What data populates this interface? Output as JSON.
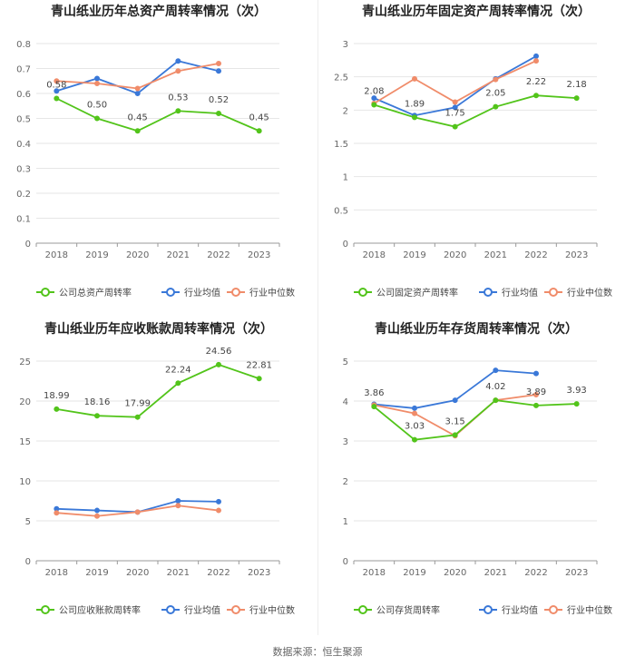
{
  "source": "数据来源：恒生聚源",
  "legend_labels": [
    "行业均值",
    "行业中位数"
  ],
  "chart_data": [
    {
      "type": "line",
      "title": "青山纸业历年总资产周转率情况（次）",
      "categories": [
        "2018",
        "2019",
        "2020",
        "2021",
        "2022",
        "2023"
      ],
      "ylim": [
        0,
        0.8
      ],
      "yticks": [
        "0",
        "0.1",
        "0.2",
        "0.3",
        "0.4",
        "0.5",
        "0.6",
        "0.7",
        "0.8"
      ],
      "series": [
        {
          "name": "公司总资产周转率",
          "color": "#52c41a",
          "values": [
            0.58,
            0.5,
            0.45,
            0.53,
            0.52,
            0.45
          ],
          "labels": [
            "0.58",
            "0.50",
            "0.45",
            "0.53",
            "0.52",
            "0.45"
          ]
        },
        {
          "name": "行业均值",
          "color": "#3a78d8",
          "values": [
            0.61,
            0.66,
            0.6,
            0.73,
            0.69,
            null
          ]
        },
        {
          "name": "行业中位数",
          "color": "#f08c6a",
          "values": [
            0.65,
            0.64,
            0.62,
            0.69,
            0.72,
            null
          ]
        }
      ]
    },
    {
      "type": "line",
      "title": "青山纸业历年固定资产周转率情况（次）",
      "categories": [
        "2018",
        "2019",
        "2020",
        "2021",
        "2022",
        "2023"
      ],
      "ylim": [
        0,
        3
      ],
      "yticks": [
        "0",
        "0.5",
        "1",
        "1.5",
        "2",
        "2.5",
        "3"
      ],
      "series": [
        {
          "name": "公司固定资产周转率",
          "color": "#52c41a",
          "values": [
            2.08,
            1.89,
            1.75,
            2.05,
            2.22,
            2.18
          ],
          "labels": [
            "2.08",
            "1.89",
            "1.75",
            "2.05",
            "2.22",
            "2.18"
          ]
        },
        {
          "name": "行业均值",
          "color": "#3a78d8",
          "values": [
            2.18,
            1.92,
            2.04,
            2.47,
            2.81,
            null
          ]
        },
        {
          "name": "行业中位数",
          "color": "#f08c6a",
          "values": [
            2.1,
            2.47,
            2.12,
            2.46,
            2.74,
            null
          ]
        }
      ]
    },
    {
      "type": "line",
      "title": "青山纸业历年应收账款周转率情况（次）",
      "categories": [
        "2018",
        "2019",
        "2020",
        "2021",
        "2022",
        "2023"
      ],
      "ylim": [
        0,
        25
      ],
      "yticks": [
        "0",
        "5",
        "10",
        "15",
        "20",
        "25"
      ],
      "series": [
        {
          "name": "公司应收账款周转率",
          "color": "#52c41a",
          "values": [
            18.99,
            18.16,
            17.99,
            22.24,
            24.56,
            22.81
          ],
          "labels": [
            "18.99",
            "18.16",
            "17.99",
            "22.24",
            "24.56",
            "22.81"
          ]
        },
        {
          "name": "行业均值",
          "color": "#3a78d8",
          "values": [
            6.5,
            6.3,
            6.1,
            7.5,
            7.4,
            null
          ]
        },
        {
          "name": "行业中位数",
          "color": "#f08c6a",
          "values": [
            6.0,
            5.6,
            6.1,
            6.9,
            6.3,
            null
          ]
        }
      ]
    },
    {
      "type": "line",
      "title": "青山纸业历年存货周转率情况（次）",
      "categories": [
        "2018",
        "2019",
        "2020",
        "2021",
        "2022",
        "2023"
      ],
      "ylim": [
        0,
        5
      ],
      "yticks": [
        "0",
        "1",
        "2",
        "3",
        "4",
        "5"
      ],
      "series": [
        {
          "name": "公司存货周转率",
          "color": "#52c41a",
          "values": [
            3.86,
            3.03,
            3.15,
            4.02,
            3.89,
            3.93
          ],
          "labels": [
            "3.86",
            "3.03",
            "3.15",
            "4.02",
            "3.89",
            "3.93"
          ]
        },
        {
          "name": "行业均值",
          "color": "#3a78d8",
          "values": [
            3.92,
            3.82,
            4.02,
            4.77,
            4.69,
            null
          ]
        },
        {
          "name": "行业中位数",
          "color": "#f08c6a",
          "values": [
            3.9,
            3.69,
            3.13,
            4.02,
            4.16,
            null
          ]
        }
      ]
    }
  ]
}
